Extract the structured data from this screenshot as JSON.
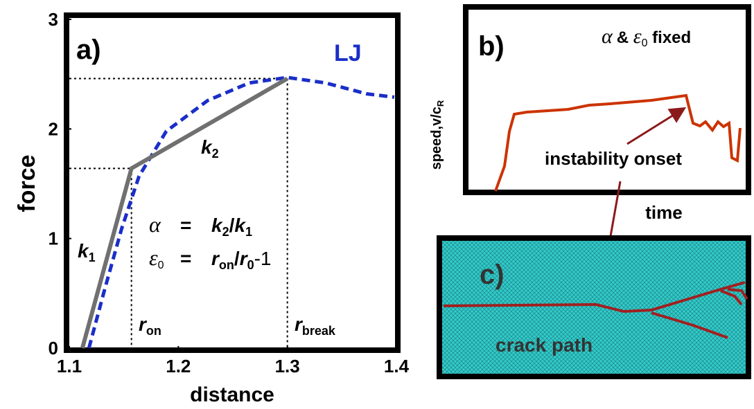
{
  "chart_data": {
    "type": "line",
    "panel_label": "a)",
    "x_label": "distance",
    "y_label": "force",
    "xlim": [
      1.1,
      1.4
    ],
    "ylim": [
      0,
      3
    ],
    "xticks": [
      1.1,
      1.2,
      1.3,
      1.4
    ],
    "yticks": [
      0,
      1,
      2,
      3
    ],
    "series": [
      {
        "name": "LJ",
        "color": "#1a2ec8",
        "dashed": true,
        "x": [
          1.118,
          1.132,
          1.148,
          1.164,
          1.189,
          1.227,
          1.265,
          1.3,
          1.335,
          1.373,
          1.398
        ],
        "values": [
          0,
          0.52,
          1.09,
          1.57,
          1.98,
          2.26,
          2.42,
          2.47,
          2.42,
          2.32,
          2.29
        ]
      },
      {
        "color": "#707070",
        "dashed": false,
        "x": [
          1.112,
          1.157,
          1.3
        ],
        "values": [
          0,
          1.64,
          2.46
        ]
      }
    ],
    "annotations": {
      "k1": [
        "k",
        "1"
      ],
      "k2": [
        "k",
        "2"
      ],
      "alpha_eq": [
        "α",
        "=",
        "k",
        "2",
        "/",
        "k",
        "1"
      ],
      "eps_eq": [
        "ε",
        "0",
        "=",
        "r",
        "on",
        "/",
        "r",
        "0",
        "-1"
      ],
      "r_on": [
        "r",
        "on"
      ],
      "r_break": [
        "r",
        "break"
      ]
    }
  },
  "panel_b": {
    "panel_label": "b)",
    "title": [
      "α",
      "& ",
      "ε",
      "0",
      " fixed"
    ],
    "y_label": [
      "speed,v/c",
      "R"
    ],
    "x_label": "time",
    "annotation": "instability onset"
  },
  "panel_c": {
    "panel_label": "c)",
    "annotation": "crack path"
  }
}
